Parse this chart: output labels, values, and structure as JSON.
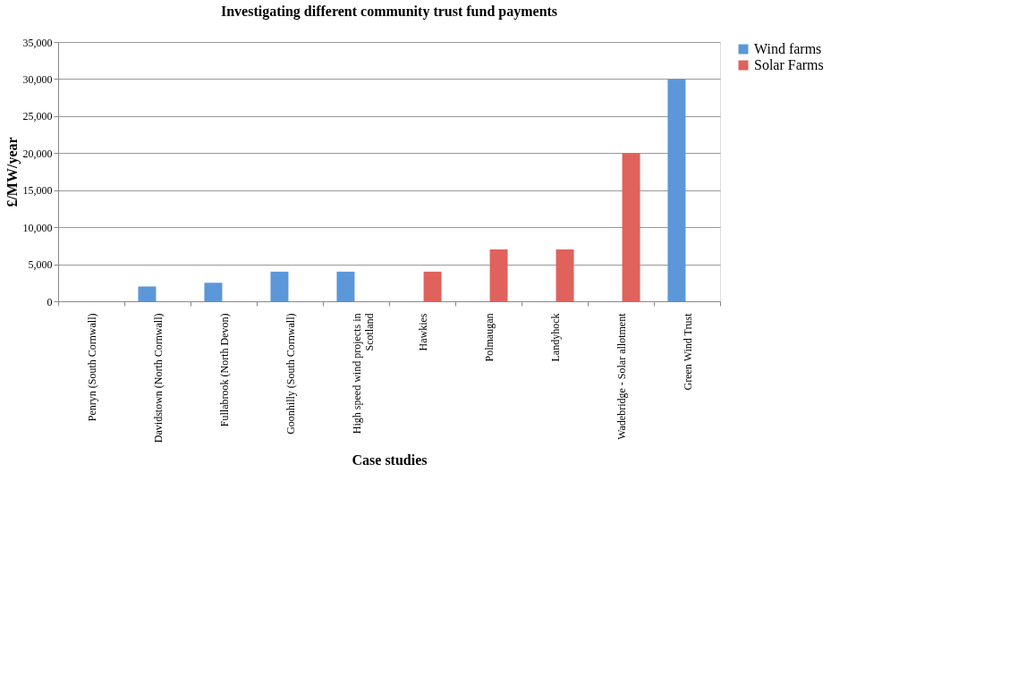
{
  "chart_data": {
    "type": "bar",
    "title": "Investigating different community trust fund payments",
    "xlabel": "Case studies",
    "ylabel": "£/MW/year",
    "categories": [
      "Penryn (South Cornwall)",
      "Davidstown (North Cornwall)",
      "Fullabrook (North Devon)",
      "Goonhilly (South Cornwall)",
      "High speed wind projects in Scotland",
      "Hawkies",
      "Polmaugan",
      "Landyhock",
      "Wadebridge - Solar allotment",
      "Green Wind Trust"
    ],
    "series": [
      {
        "name": "Wind farms",
        "color": "#5b97d9",
        "values": [
          null,
          2000,
          2500,
          4000,
          4000,
          null,
          null,
          null,
          null,
          30000
        ]
      },
      {
        "name": "Solar Farms",
        "color": "#e0625c",
        "values": [
          null,
          null,
          null,
          null,
          null,
          4000,
          7000,
          7000,
          20000,
          null
        ]
      }
    ],
    "ylim": [
      0,
      35000
    ],
    "yticks": [
      {
        "value": 0,
        "label": "0"
      },
      {
        "value": 5000,
        "label": "5,000"
      },
      {
        "value": 10000,
        "label": "10,000"
      },
      {
        "value": 15000,
        "label": "15,000"
      },
      {
        "value": 20000,
        "label": "20,000"
      },
      {
        "value": 25000,
        "label": "25,000"
      },
      {
        "value": 30000,
        "label": "30,000"
      },
      {
        "value": 35000,
        "label": "35,000"
      }
    ],
    "grid": "y",
    "legend": "right"
  }
}
